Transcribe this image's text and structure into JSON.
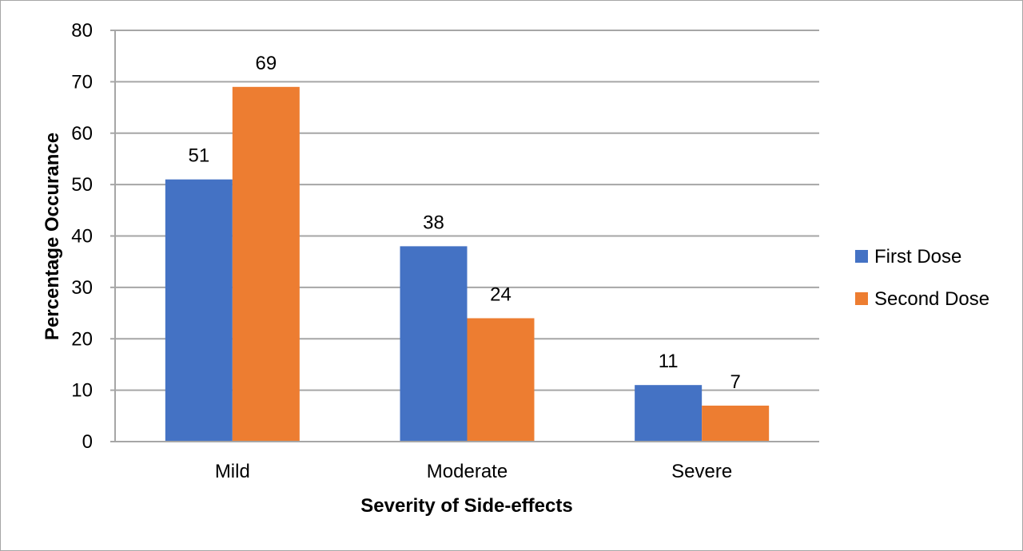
{
  "chart_data": {
    "type": "bar",
    "title": "",
    "xlabel": "Severity of Side-effects",
    "ylabel": "Percentage Occurance",
    "categories": [
      "Mild",
      "Moderate",
      "Severe"
    ],
    "series": [
      {
        "name": "First Dose",
        "color": "#4472c4",
        "values": [
          51,
          38,
          11
        ]
      },
      {
        "name": "Second Dose",
        "color": "#ed7d31",
        "values": [
          69,
          24,
          7
        ]
      }
    ],
    "data_labels": [
      [
        "51",
        "38",
        "11"
      ],
      [
        "69",
        "24",
        "7"
      ]
    ],
    "ylim": [
      0,
      80
    ],
    "yticks": [
      0,
      10,
      20,
      30,
      40,
      50,
      60,
      70,
      80
    ],
    "ytick_labels": [
      "0",
      "10",
      "20",
      "30",
      "40",
      "50",
      "60",
      "70",
      "80"
    ],
    "grid": true,
    "grid_color": "#a6a6a6",
    "legend_position": "right"
  }
}
